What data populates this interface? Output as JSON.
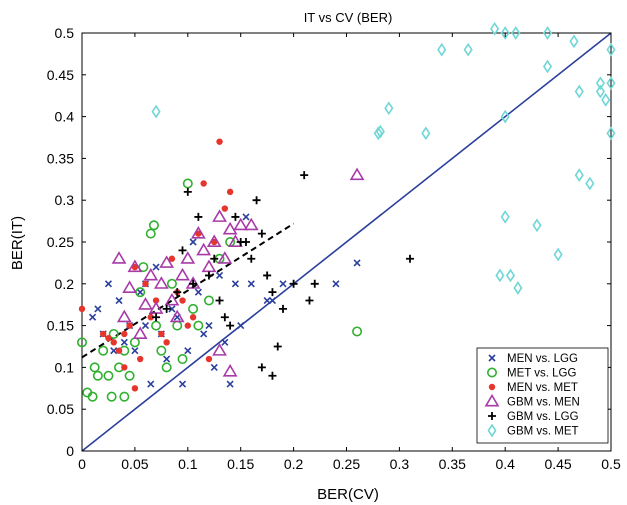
{
  "chart_data": {
    "type": "scatter",
    "title": "IT vs CV (BER)",
    "xlabel": "BER(CV)",
    "ylabel": "BER(IT)",
    "xlim": [
      0,
      0.5
    ],
    "ylim": [
      0,
      0.5
    ],
    "xticks": [
      "0",
      "0.05",
      "0.1",
      "0.15",
      "0.2",
      "0.25",
      "0.3",
      "0.35",
      "0.4",
      "0.45",
      "0.5"
    ],
    "yticks": [
      "0",
      "0.05",
      "0.1",
      "0.15",
      "0.2",
      "0.25",
      "0.3",
      "0.35",
      "0.4",
      "0.45",
      "0.5"
    ],
    "grid": false,
    "legend_position": "bottom-right",
    "reference_lines": [
      {
        "kind": "identity",
        "style": "solid",
        "color": "#2b3f9c",
        "points": [
          [
            0,
            0
          ],
          [
            0.5,
            0.5
          ]
        ]
      },
      {
        "kind": "fit",
        "style": "dashed",
        "color": "#000000",
        "points": [
          [
            0,
            0.112
          ],
          [
            0.2,
            0.272
          ]
        ]
      }
    ],
    "series": [
      {
        "name": "MEN vs. LGG",
        "marker": "x",
        "color": "#2b3f9c",
        "points": [
          [
            0.01,
            0.16
          ],
          [
            0.015,
            0.17
          ],
          [
            0.02,
            0.14
          ],
          [
            0.025,
            0.2
          ],
          [
            0.03,
            0.12
          ],
          [
            0.035,
            0.18
          ],
          [
            0.04,
            0.13
          ],
          [
            0.045,
            0.15
          ],
          [
            0.05,
            0.12
          ],
          [
            0.055,
            0.19
          ],
          [
            0.06,
            0.2
          ],
          [
            0.06,
            0.15
          ],
          [
            0.065,
            0.08
          ],
          [
            0.07,
            0.22
          ],
          [
            0.075,
            0.14
          ],
          [
            0.08,
            0.11
          ],
          [
            0.085,
            0.17
          ],
          [
            0.09,
            0.16
          ],
          [
            0.095,
            0.08
          ],
          [
            0.1,
            0.12
          ],
          [
            0.105,
            0.25
          ],
          [
            0.11,
            0.19
          ],
          [
            0.115,
            0.14
          ],
          [
            0.12,
            0.15
          ],
          [
            0.125,
            0.1
          ],
          [
            0.13,
            0.21
          ],
          [
            0.135,
            0.13
          ],
          [
            0.14,
            0.08
          ],
          [
            0.145,
            0.2
          ],
          [
            0.15,
            0.15
          ],
          [
            0.155,
            0.28
          ],
          [
            0.16,
            0.2
          ],
          [
            0.175,
            0.18
          ],
          [
            0.18,
            0.18
          ],
          [
            0.19,
            0.2
          ],
          [
            0.24,
            0.2
          ],
          [
            0.26,
            0.225
          ]
        ]
      },
      {
        "name": "MET vs. LGG",
        "marker": "circle",
        "color": "#2fb12f",
        "points": [
          [
            0,
            0.13
          ],
          [
            0.005,
            0.07
          ],
          [
            0.01,
            0.065
          ],
          [
            0.012,
            0.1
          ],
          [
            0.015,
            0.09
          ],
          [
            0.02,
            0.12
          ],
          [
            0.025,
            0.09
          ],
          [
            0.028,
            0.065
          ],
          [
            0.03,
            0.14
          ],
          [
            0.035,
            0.1
          ],
          [
            0.04,
            0.065
          ],
          [
            0.04,
            0.12
          ],
          [
            0.045,
            0.09
          ],
          [
            0.05,
            0.13
          ],
          [
            0.055,
            0.19
          ],
          [
            0.058,
            0.22
          ],
          [
            0.065,
            0.26
          ],
          [
            0.068,
            0.27
          ],
          [
            0.07,
            0.15
          ],
          [
            0.075,
            0.12
          ],
          [
            0.08,
            0.1
          ],
          [
            0.085,
            0.2
          ],
          [
            0.09,
            0.15
          ],
          [
            0.095,
            0.11
          ],
          [
            0.1,
            0.32
          ],
          [
            0.105,
            0.17
          ],
          [
            0.11,
            0.15
          ],
          [
            0.12,
            0.18
          ],
          [
            0.13,
            0.23
          ],
          [
            0.14,
            0.25
          ],
          [
            0.26,
            0.143
          ]
        ]
      },
      {
        "name": "MEN vs. MET",
        "marker": "dot",
        "color": "#e6352c",
        "points": [
          [
            0,
            0.17
          ],
          [
            0.02,
            0.14
          ],
          [
            0.025,
            0.135
          ],
          [
            0.03,
            0.13
          ],
          [
            0.035,
            0.12
          ],
          [
            0.04,
            0.1
          ],
          [
            0.04,
            0.14
          ],
          [
            0.045,
            0.15
          ],
          [
            0.05,
            0.22
          ],
          [
            0.05,
            0.075
          ],
          [
            0.055,
            0.11
          ],
          [
            0.06,
            0.2
          ],
          [
            0.065,
            0.16
          ],
          [
            0.07,
            0.18
          ],
          [
            0.075,
            0.14
          ],
          [
            0.08,
            0.13
          ],
          [
            0.085,
            0.23
          ],
          [
            0.09,
            0.19
          ],
          [
            0.095,
            0.18
          ],
          [
            0.1,
            0.15
          ],
          [
            0.105,
            0.16
          ],
          [
            0.11,
            0.26
          ],
          [
            0.115,
            0.32
          ],
          [
            0.12,
            0.11
          ],
          [
            0.125,
            0.25
          ],
          [
            0.13,
            0.37
          ],
          [
            0.135,
            0.29
          ],
          [
            0.14,
            0.31
          ]
        ]
      },
      {
        "name": "GBM vs. MEN",
        "marker": "triangle",
        "color": "#a83aa8",
        "points": [
          [
            0.035,
            0.23
          ],
          [
            0.04,
            0.16
          ],
          [
            0.045,
            0.195
          ],
          [
            0.05,
            0.22
          ],
          [
            0.055,
            0.14
          ],
          [
            0.06,
            0.175
          ],
          [
            0.065,
            0.21
          ],
          [
            0.07,
            0.17
          ],
          [
            0.075,
            0.2
          ],
          [
            0.08,
            0.225
          ],
          [
            0.085,
            0.18
          ],
          [
            0.09,
            0.16
          ],
          [
            0.095,
            0.21
          ],
          [
            0.1,
            0.23
          ],
          [
            0.105,
            0.2
          ],
          [
            0.11,
            0.26
          ],
          [
            0.115,
            0.24
          ],
          [
            0.12,
            0.22
          ],
          [
            0.125,
            0.25
          ],
          [
            0.13,
            0.28
          ],
          [
            0.135,
            0.23
          ],
          [
            0.14,
            0.265
          ],
          [
            0.145,
            0.25
          ],
          [
            0.15,
            0.27
          ],
          [
            0.16,
            0.27
          ],
          [
            0.13,
            0.12
          ],
          [
            0.14,
            0.095
          ],
          [
            0.26,
            0.33
          ]
        ]
      },
      {
        "name": "GBM vs. LGG",
        "marker": "plus",
        "color": "#000000",
        "points": [
          [
            0.07,
            0.16
          ],
          [
            0.08,
            0.17
          ],
          [
            0.09,
            0.19
          ],
          [
            0.095,
            0.24
          ],
          [
            0.1,
            0.31
          ],
          [
            0.105,
            0.2
          ],
          [
            0.11,
            0.28
          ],
          [
            0.12,
            0.21
          ],
          [
            0.125,
            0.23
          ],
          [
            0.13,
            0.18
          ],
          [
            0.135,
            0.16
          ],
          [
            0.14,
            0.15
          ],
          [
            0.145,
            0.28
          ],
          [
            0.15,
            0.25
          ],
          [
            0.155,
            0.25
          ],
          [
            0.16,
            0.23
          ],
          [
            0.165,
            0.3
          ],
          [
            0.17,
            0.26
          ],
          [
            0.175,
            0.21
          ],
          [
            0.18,
            0.19
          ],
          [
            0.185,
            0.125
          ],
          [
            0.19,
            0.17
          ],
          [
            0.2,
            0.2
          ],
          [
            0.21,
            0.33
          ],
          [
            0.215,
            0.18
          ],
          [
            0.22,
            0.2
          ],
          [
            0.17,
            0.1
          ],
          [
            0.18,
            0.09
          ],
          [
            0.31,
            0.23
          ]
        ]
      },
      {
        "name": "GBM vs. MET",
        "marker": "diamond",
        "color": "#6fd6d6",
        "points": [
          [
            0.07,
            0.406
          ],
          [
            0.28,
            0.38
          ],
          [
            0.282,
            0.382
          ],
          [
            0.29,
            0.41
          ],
          [
            0.325,
            0.38
          ],
          [
            0.34,
            0.48
          ],
          [
            0.365,
            0.48
          ],
          [
            0.39,
            0.505
          ],
          [
            0.395,
            0.21
          ],
          [
            0.4,
            0.4
          ],
          [
            0.4,
            0.28
          ],
          [
            0.4,
            0.5
          ],
          [
            0.405,
            0.21
          ],
          [
            0.41,
            0.5
          ],
          [
            0.412,
            0.195
          ],
          [
            0.43,
            0.27
          ],
          [
            0.44,
            0.46
          ],
          [
            0.44,
            0.5
          ],
          [
            0.45,
            0.235
          ],
          [
            0.465,
            0.49
          ],
          [
            0.47,
            0.43
          ],
          [
            0.47,
            0.33
          ],
          [
            0.48,
            0.32
          ],
          [
            0.49,
            0.43
          ],
          [
            0.49,
            0.44
          ],
          [
            0.495,
            0.42
          ],
          [
            0.5,
            0.48
          ],
          [
            0.5,
            0.44
          ],
          [
            0.5,
            0.38
          ]
        ]
      }
    ]
  }
}
